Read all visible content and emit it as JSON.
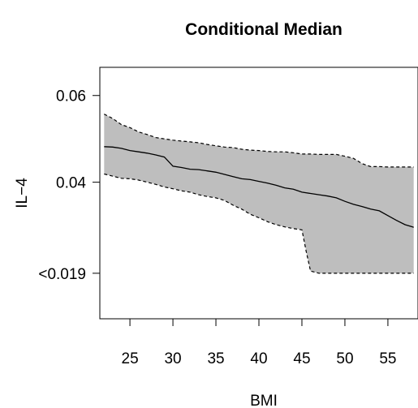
{
  "chart_data": {
    "type": "area",
    "title": "Conditional Median",
    "xlabel": "BMI",
    "ylabel": "IL−4",
    "xlim": [
      21.5,
      58.5
    ],
    "ylim": [
      0.0085,
      0.0665
    ],
    "x_ticks": [
      25,
      30,
      35,
      40,
      45,
      50,
      55
    ],
    "y_ticks": [
      {
        "value": 0.019,
        "label": "<0.019"
      },
      {
        "value": 0.04,
        "label": "0.04"
      },
      {
        "value": 0.06,
        "label": "0.06"
      }
    ],
    "grid": false,
    "series": [
      {
        "role": "median",
        "line": "solid",
        "x": [
          22,
          23,
          24,
          25,
          26,
          27,
          28,
          29,
          30,
          31,
          32,
          33,
          34,
          35,
          36,
          37,
          38,
          39,
          40,
          41,
          42,
          43,
          44,
          45,
          46,
          47,
          48,
          49,
          50,
          51,
          52,
          53,
          54,
          55,
          56,
          57,
          58
        ],
        "y": [
          0.0482,
          0.0481,
          0.0478,
          0.0473,
          0.047,
          0.0467,
          0.0463,
          0.0458,
          0.0437,
          0.0434,
          0.043,
          0.0429,
          0.0426,
          0.0423,
          0.0418,
          0.0413,
          0.0408,
          0.0406,
          0.0402,
          0.0398,
          0.0393,
          0.0387,
          0.0384,
          0.0377,
          0.0374,
          0.0371,
          0.0368,
          0.0364,
          0.0356,
          0.0349,
          0.0344,
          0.0338,
          0.0334,
          0.0323,
          0.0312,
          0.0302,
          0.0296
        ]
      },
      {
        "role": "upper-bound",
        "line": "dashed",
        "x": [
          22,
          23,
          24,
          25,
          26,
          27,
          28,
          29,
          30,
          31,
          32,
          33,
          34,
          35,
          36,
          37,
          38,
          39,
          40,
          41,
          42,
          43,
          44,
          45,
          46,
          47,
          48,
          49,
          50,
          51,
          52,
          53,
          54,
          55,
          56,
          57,
          58
        ],
        "y": [
          0.0557,
          0.0547,
          0.0533,
          0.0526,
          0.0516,
          0.051,
          0.0503,
          0.05,
          0.0497,
          0.0495,
          0.0493,
          0.0491,
          0.0487,
          0.0484,
          0.0481,
          0.048,
          0.0476,
          0.0474,
          0.0473,
          0.0471,
          0.047,
          0.047,
          0.0468,
          0.0465,
          0.0465,
          0.0464,
          0.0464,
          0.0464,
          0.046,
          0.0455,
          0.0443,
          0.0436,
          0.0436,
          0.0435,
          0.0435,
          0.0435,
          0.0435
        ]
      },
      {
        "role": "lower-bound",
        "line": "dashed",
        "x": [
          22,
          23,
          24,
          25,
          26,
          27,
          28,
          29,
          30,
          31,
          32,
          33,
          34,
          35,
          36,
          37,
          38,
          39,
          40,
          41,
          42,
          43,
          44,
          45,
          45.5,
          46,
          47,
          48,
          49,
          50,
          51,
          52,
          53,
          54,
          55,
          56,
          57,
          58
        ],
        "y": [
          0.0419,
          0.0414,
          0.0409,
          0.0408,
          0.0405,
          0.04,
          0.0395,
          0.0389,
          0.0385,
          0.038,
          0.0377,
          0.0371,
          0.0367,
          0.0364,
          0.0358,
          0.0347,
          0.0338,
          0.0326,
          0.0318,
          0.0309,
          0.0302,
          0.0297,
          0.0293,
          0.029,
          0.024,
          0.0195,
          0.019,
          0.019,
          0.019,
          0.019,
          0.019,
          0.019,
          0.019,
          0.019,
          0.019,
          0.019,
          0.019,
          0.019
        ]
      }
    ],
    "band_color": "#bebebe",
    "line_color": "#000000"
  }
}
